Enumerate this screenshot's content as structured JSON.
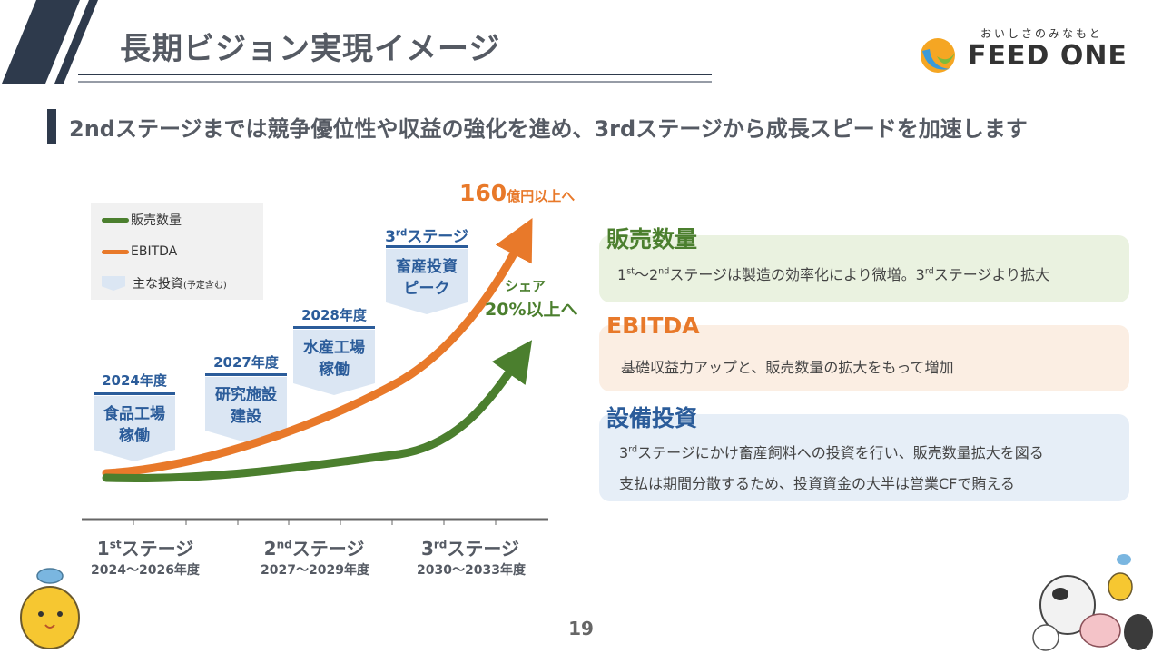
{
  "header": {
    "title": "長期ビジョン実現イメージ",
    "subtitle": "2ndステージまでは競争優位性や収益の強化を進め、3rdステージから成長スピードを加速します"
  },
  "logo": {
    "tagline": "おいしさのみなもと",
    "name": "FEED ONE"
  },
  "legend": {
    "sales_label": "販売数量",
    "ebitda_label": "EBITDA",
    "investment_label": "主な投資",
    "investment_note": "(予定含む)"
  },
  "investments": [
    {
      "year": "2024年度",
      "line1": "食品工場",
      "line2": "稼働"
    },
    {
      "year": "2027年度",
      "line1": "研究施設",
      "line2": "建設"
    },
    {
      "year": "2028年度",
      "line1": "水産工場",
      "line2": "稼働"
    },
    {
      "year_num": "3",
      "year_sup": "rd",
      "year_rest": "ステージ",
      "line1": "畜産投資",
      "line2": "ピーク"
    }
  ],
  "targets": {
    "ebitda_value": "160",
    "ebitda_unit": "億円以上へ",
    "share_label": "シェア",
    "share_value": "20%以上へ"
  },
  "stages": [
    {
      "num": "1",
      "sup": "st",
      "label": "ステージ",
      "years": "2024～2026年度"
    },
    {
      "num": "2",
      "sup": "nd",
      "label": "ステージ",
      "years": "2027～2029年度"
    },
    {
      "num": "3",
      "sup": "rd",
      "label": "ステージ",
      "years": "2030～2033年度"
    }
  ],
  "cards": {
    "sales": {
      "title": "販売数量",
      "t1": "1",
      "s1": "st",
      "t2": "～2",
      "s2": "nd",
      "t3": "ステージは製造の効率化により微増。3",
      "s3": "rd",
      "t4": "ステージより拡大"
    },
    "ebitda": {
      "title": "EBITDA",
      "text": "基礎収益力アップと、販売数量の拡大をもって増加"
    },
    "capex": {
      "title": "設備投資",
      "l1_num": "3",
      "l1_sup": "rd",
      "l1_rest": "ステージにかけ畜産飼料への投資を行い、販売数量拡大を図る",
      "l2": "支払は期間分散するため、投資資金の大半は営業CFで賄える"
    }
  },
  "page_number": "19",
  "colors": {
    "navy": "#2e3a4c",
    "orange": "#e8792a",
    "green": "#4b7f2e",
    "blue": "#2b5c9a",
    "card_green_bg": "#eaf2e0",
    "card_orange_bg": "#fbeee3",
    "card_blue_bg": "#e6eef7"
  }
}
